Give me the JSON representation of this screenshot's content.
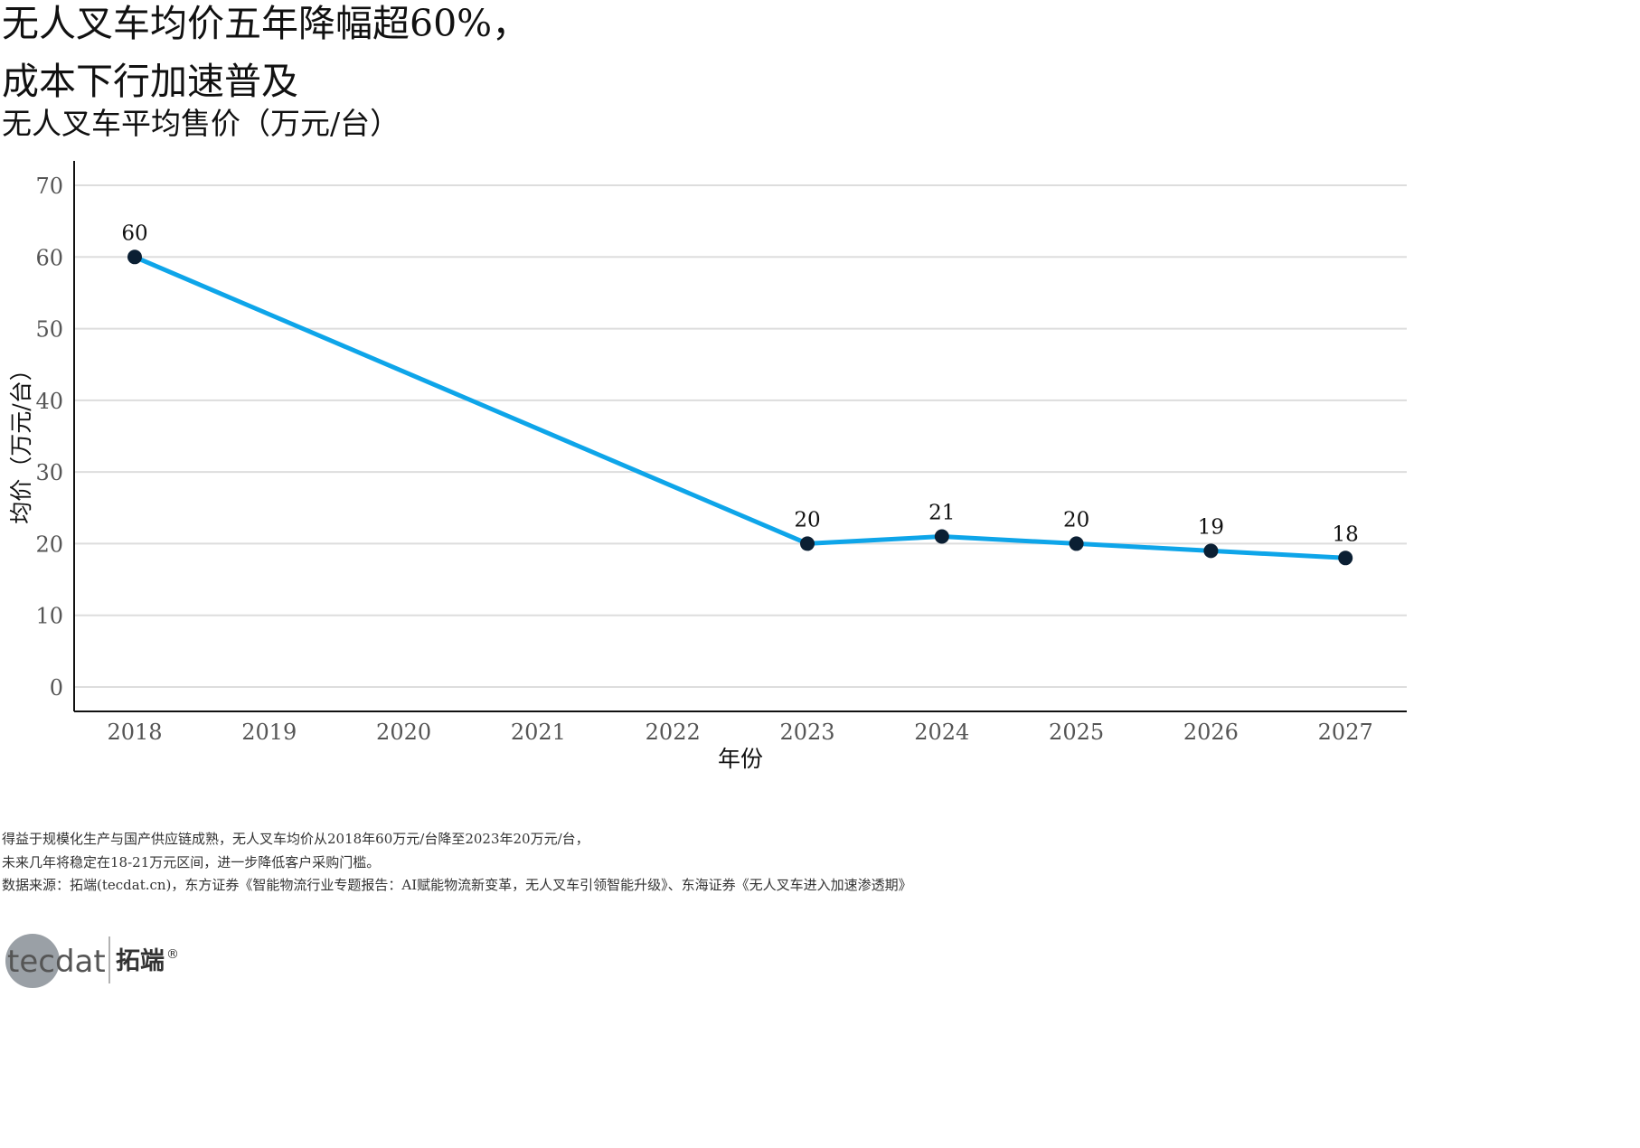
{
  "title_line1": "无人叉车均价五年降幅超60%，",
  "title_line2": "成本下行加速普及",
  "subtitle": "无人叉车平均售价（万元/台）",
  "notes": [
    "得益于规模化生产与国产供应链成熟，无人叉车均价从2018年60万元/台降至2023年20万元/台，",
    "未来几年将稳定在18-21万元区间，进一步降低客户采购门槛。",
    "数据来源：拓端(tecdat.cn)，东方证券《智能物流行业专题报告：AI赋能物流新变革，无人叉车引领智能升级》、东海证券《无人叉车进入加速渗透期》"
  ],
  "logo": {
    "text": "tecdat",
    "brand_cn": "拓端",
    "reg_mark": "®"
  },
  "colors": {
    "line": "#0ea5e9",
    "marker": "#0b1f33",
    "grid": "#dddddd",
    "axis": "#111111"
  },
  "chart_data": {
    "type": "line",
    "categories": [
      "2018",
      "2019",
      "2020",
      "2021",
      "2022",
      "2023",
      "2024",
      "2025",
      "2026",
      "2027"
    ],
    "series": [
      {
        "points": [
          {
            "x": "2018",
            "y": 60
          },
          {
            "x": "2023",
            "y": 20
          },
          {
            "x": "2024",
            "y": 21
          },
          {
            "x": "2025",
            "y": 20
          },
          {
            "x": "2026",
            "y": 19
          },
          {
            "x": "2027",
            "y": 18
          }
        ]
      }
    ],
    "data_labels": [
      "60",
      "20",
      "21",
      "20",
      "19",
      "18"
    ],
    "xlabel": "年份",
    "ylabel": "均价（万元/台）",
    "ylim": [
      0,
      70
    ],
    "yticks": [
      0,
      10,
      20,
      30,
      40,
      50,
      60,
      70
    ],
    "grid": "horizontal"
  }
}
